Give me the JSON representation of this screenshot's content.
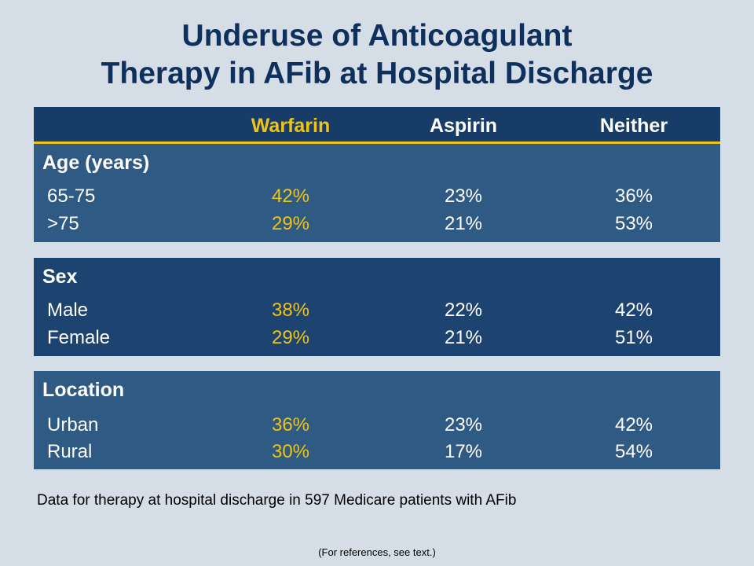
{
  "title": {
    "line1": "Underuse of Anticoagulant",
    "line2": "Therapy in AFib at Hospital Discharge"
  },
  "chart_data": {
    "type": "table",
    "columns": [
      "Warfarin",
      "Aspirin",
      "Neither"
    ],
    "groups": [
      {
        "name": "Age (years)",
        "rows": [
          {
            "label": "65-75",
            "values": [
              "42%",
              "23%",
              "36%"
            ]
          },
          {
            "label": ">75",
            "values": [
              "29%",
              "21%",
              "53%"
            ]
          }
        ]
      },
      {
        "name": "Sex",
        "rows": [
          {
            "label": "Male",
            "values": [
              "38%",
              "22%",
              "42%"
            ]
          },
          {
            "label": "Female",
            "values": [
              "29%",
              "21%",
              "51%"
            ]
          }
        ]
      },
      {
        "name": "Location",
        "rows": [
          {
            "label": "Urban",
            "values": [
              "36%",
              "23%",
              "42%"
            ]
          },
          {
            "label": "Rural",
            "values": [
              "30%",
              "17%",
              "54%"
            ]
          }
        ]
      }
    ]
  },
  "footnote": "Data for therapy at hospital discharge in 597 Medicare patients with AFib",
  "reference": "(For references, see text.)",
  "colors": {
    "background": "#d5dde6",
    "title": "#0f2f5c",
    "header_bar": "#173c68",
    "accent_warfarin": "#f0c414",
    "group_light": "#2e5a84",
    "group_dark": "#1d4470"
  }
}
